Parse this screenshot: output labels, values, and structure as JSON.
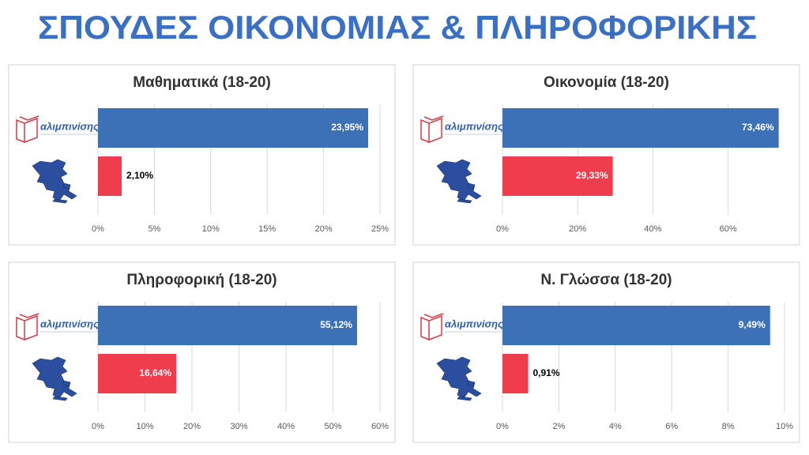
{
  "title": "ΣΠΟΥΔΕΣ ΟΙΚΟΝΟΜΙΑΣ & ΠΛΗΡΟΦΟΡΙΚΗΣ",
  "chart_data": [
    {
      "type": "bar",
      "orientation": "horizontal",
      "title": "Μαθηματικά (18-20)",
      "categories": [
        "αλιμπινίσης",
        null
      ],
      "values": [
        23.95,
        2.1
      ],
      "value_labels": [
        "23,95%",
        "2,10%"
      ],
      "colors": [
        "#3d71b7",
        "#ef3d4d"
      ],
      "xlim": [
        0,
        25
      ],
      "xticks": [
        {
          "value": 0,
          "label": "0%"
        },
        {
          "value": 5,
          "label": "5%"
        },
        {
          "value": 10,
          "label": "10%"
        },
        {
          "value": 15,
          "label": "15%"
        },
        {
          "value": 20,
          "label": "20%"
        },
        {
          "value": 25,
          "label": "25%"
        }
      ],
      "grid": true
    },
    {
      "type": "bar",
      "orientation": "horizontal",
      "title": "Οικονομία (18-20)",
      "categories": [
        "αλιμπινίσης",
        null
      ],
      "values": [
        73.46,
        29.33
      ],
      "value_labels": [
        "73,46%",
        "29,33%"
      ],
      "colors": [
        "#3d71b7",
        "#ef3d4d"
      ],
      "xlim": [
        0,
        75
      ],
      "xticks": [
        {
          "value": 0,
          "label": "0%"
        },
        {
          "value": 20,
          "label": "20%"
        },
        {
          "value": 40,
          "label": "40%"
        },
        {
          "value": 60,
          "label": "60%"
        }
      ],
      "grid": true
    },
    {
      "type": "bar",
      "orientation": "horizontal",
      "title": "Πληροφορική (18-20)",
      "categories": [
        "αλιμπινίσης",
        null
      ],
      "values": [
        55.12,
        16.64
      ],
      "value_labels": [
        "55,12%",
        "16,64%"
      ],
      "colors": [
        "#3d71b7",
        "#ef3d4d"
      ],
      "xlim": [
        0,
        60
      ],
      "xticks": [
        {
          "value": 0,
          "label": "0%"
        },
        {
          "value": 10,
          "label": "10%"
        },
        {
          "value": 20,
          "label": "20%"
        },
        {
          "value": 30,
          "label": "30%"
        },
        {
          "value": 40,
          "label": "40%"
        },
        {
          "value": 50,
          "label": "50%"
        },
        {
          "value": 60,
          "label": "60%"
        }
      ],
      "grid": true
    },
    {
      "type": "bar",
      "orientation": "horizontal",
      "title": "Ν. Γλώσσα (18-20)",
      "categories": [
        "αλιμπινίσης",
        null
      ],
      "values": [
        9.49,
        0.91
      ],
      "value_labels": [
        "9,49%",
        "0,91%"
      ],
      "colors": [
        "#3d71b7",
        "#ef3d4d"
      ],
      "xlim": [
        0,
        10
      ],
      "xticks": [
        {
          "value": 0,
          "label": "0%"
        },
        {
          "value": 2,
          "label": "2%"
        },
        {
          "value": 4,
          "label": "4%"
        },
        {
          "value": 6,
          "label": "6%"
        },
        {
          "value": 8,
          "label": "8%"
        },
        {
          "value": 10,
          "label": "10%"
        }
      ],
      "grid": true
    }
  ]
}
